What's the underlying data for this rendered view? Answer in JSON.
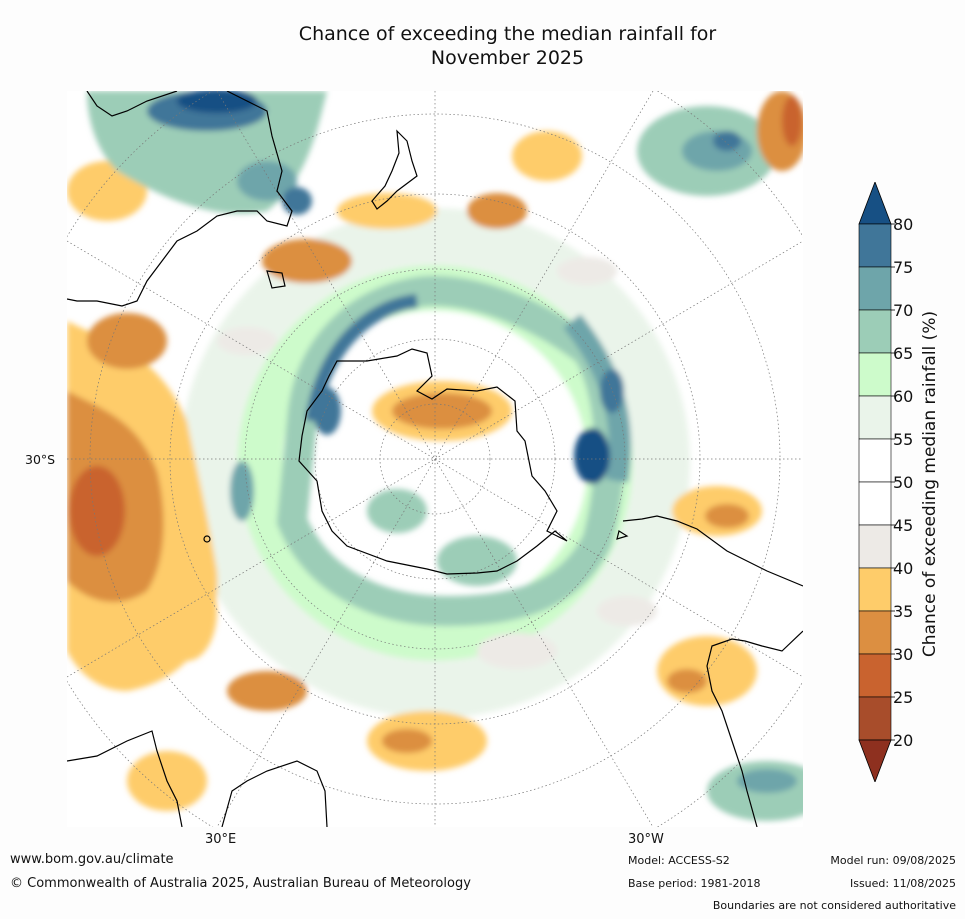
{
  "title": {
    "line1": "Chance of exceeding the median rainfall for",
    "line2": "November 2025"
  },
  "map": {
    "projection": "south-polar-stereographic",
    "graticule": {
      "lat_label": "30°S",
      "lon_label_left": "30°E",
      "lon_label_right": "30°W"
    }
  },
  "colorbar": {
    "label": "Chance of exceeding median rainfall (%)",
    "ticks": [
      "80",
      "75",
      "70",
      "65",
      "60",
      "55",
      "50",
      "45",
      "40",
      "35",
      "30",
      "25",
      "20"
    ],
    "bins": [
      {
        "range": [
          80,
          100
        ],
        "color": "#175084"
      },
      {
        "range": [
          75,
          80
        ],
        "color": "#407699"
      },
      {
        "range": [
          70,
          75
        ],
        "color": "#6ea5aa"
      },
      {
        "range": [
          65,
          70
        ],
        "color": "#9ccdb7"
      },
      {
        "range": [
          60,
          65
        ],
        "color": "#cdfbcb"
      },
      {
        "range": [
          55,
          60
        ],
        "color": "#eaf4ea"
      },
      {
        "range": [
          50,
          55
        ],
        "color": "#ffffff"
      },
      {
        "range": [
          45,
          50
        ],
        "color": "#ffffff"
      },
      {
        "range": [
          40,
          45
        ],
        "color": "#edeae6"
      },
      {
        "range": [
          35,
          40
        ],
        "color": "#fecc6a"
      },
      {
        "range": [
          30,
          35
        ],
        "color": "#dc8f41"
      },
      {
        "range": [
          25,
          30
        ],
        "color": "#c9632f"
      },
      {
        "range": [
          20,
          25
        ],
        "color": "#a84d2b"
      },
      {
        "range": [
          0,
          20
        ],
        "color": "#8e301f"
      }
    ]
  },
  "footer": {
    "website": "www.bom.gov.au/climate",
    "copyright": "© Commonwealth of Australia 2025, Australian Bureau of Meteorology",
    "model": "Model: ACCESS-S2",
    "base_period": "Base period: 1981-2018",
    "model_run": "Model run: 09/08/2025",
    "issued": "Issued: 11/08/2025",
    "disclaimer": "Boundaries are not considered authoritative"
  }
}
